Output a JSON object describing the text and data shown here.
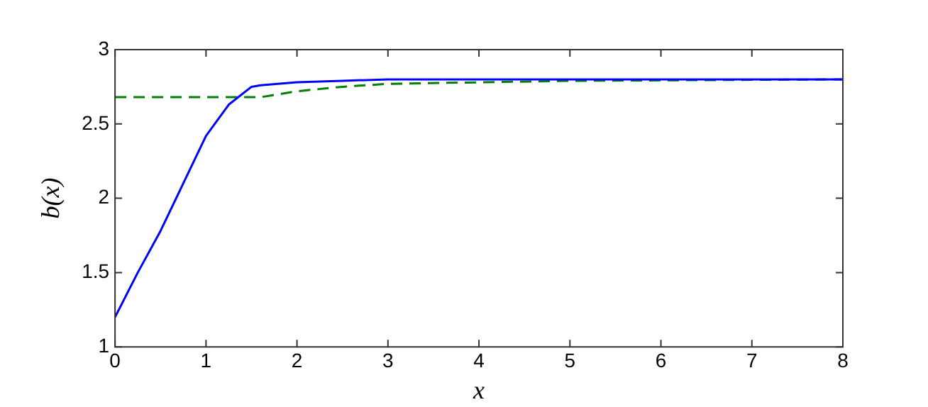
{
  "chart_data": {
    "type": "line",
    "xlabel": "x",
    "ylabel": "b(x)",
    "xlim": [
      0,
      8
    ],
    "xticks": [
      0,
      1,
      2,
      3,
      4,
      5,
      6,
      7,
      8
    ],
    "ylim": [
      1,
      3
    ],
    "yticks": [
      1,
      1.5,
      2,
      2.5,
      3
    ],
    "grid": false,
    "legend": false,
    "marker": "none",
    "series": [
      {
        "color": "#0000ff",
        "line_style": "solid",
        "x": [
          0,
          0.25,
          0.5,
          0.75,
          1,
          1.25,
          1.5,
          1.6,
          2,
          2.5,
          3,
          8
        ],
        "values": [
          1.2,
          1.5,
          1.78,
          2.1,
          2.42,
          2.63,
          2.75,
          2.76,
          2.78,
          2.79,
          2.8,
          2.8
        ]
      },
      {
        "color": "#008000",
        "line_style": "dashed",
        "x": [
          0,
          1.6,
          1.8,
          2,
          2.5,
          3,
          4,
          5,
          8
        ],
        "values": [
          2.68,
          2.68,
          2.7,
          2.72,
          2.75,
          2.77,
          2.78,
          2.79,
          2.8
        ]
      }
    ]
  }
}
